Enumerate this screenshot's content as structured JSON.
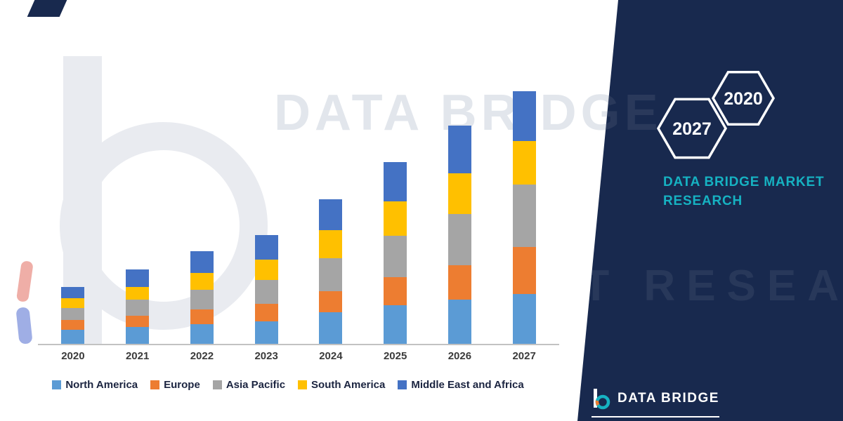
{
  "watermark": {
    "line1": "DATA BRIDGE",
    "line2": "MARKET RESEARCH"
  },
  "panel": {
    "hexagon_years": [
      "2027",
      "2020"
    ],
    "title_line1": "DATA BRIDGE MARKET",
    "title_line2": "RESEARCH",
    "footer_brand": "DATA BRIDGE",
    "colors": {
      "background_navy": "#18294E",
      "accent_teal": "#16B2C2",
      "accent_orange": "#ED7D31"
    }
  },
  "chart_data": {
    "type": "bar",
    "stacked": true,
    "title": "",
    "xlabel": "",
    "ylabel": "",
    "categories": [
      "2020",
      "2021",
      "2022",
      "2023",
      "2024",
      "2025",
      "2026",
      "2027"
    ],
    "series": [
      {
        "name": "North America",
        "color": "#5B9BD5",
        "values": [
          20,
          24,
          28,
          32,
          44,
          54,
          62,
          70
        ]
      },
      {
        "name": "Europe",
        "color": "#ED7D31",
        "values": [
          14,
          16,
          20,
          24,
          30,
          40,
          48,
          66
        ]
      },
      {
        "name": "Asia Pacific",
        "color": "#A5A5A5",
        "values": [
          16,
          22,
          28,
          34,
          46,
          58,
          72,
          88
        ]
      },
      {
        "name": "South America",
        "color": "#FFC000",
        "values": [
          14,
          18,
          24,
          28,
          40,
          48,
          58,
          61
        ]
      },
      {
        "name": "Middle East and Africa",
        "color": "#4472C4",
        "values": [
          16,
          25,
          30,
          35,
          43,
          55,
          67,
          70
        ]
      }
    ],
    "ylim": [
      0,
      380
    ],
    "y_axis_labels_visible": false,
    "grid": false,
    "legend_position": "bottom"
  }
}
